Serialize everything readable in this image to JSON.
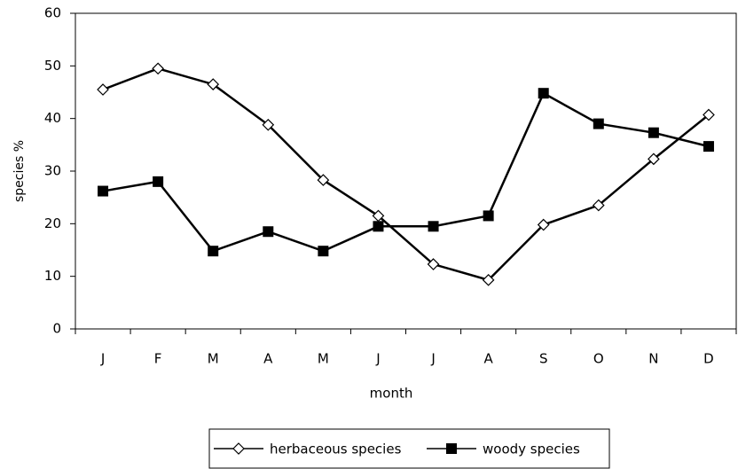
{
  "chart_data": {
    "type": "line",
    "x_label": "month",
    "y_label": "species  %",
    "categories": [
      "J",
      "F",
      "M",
      "A",
      "M",
      "J",
      "J",
      "A",
      "S",
      "O",
      "N",
      "D"
    ],
    "series": [
      {
        "name": "herbaceous species",
        "color": "#000000",
        "marker": "diamond",
        "values": [
          45.5,
          49.5,
          46.5,
          38.8,
          28.3,
          21.5,
          12.3,
          9.3,
          19.8,
          23.5,
          32.3,
          40.7
        ]
      },
      {
        "name": "woody species",
        "color": "#000000",
        "marker": "square",
        "values": [
          26.2,
          28,
          14.8,
          18.5,
          14.8,
          19.5,
          19.5,
          21.5,
          44.8,
          39,
          37.3,
          34.7
        ]
      }
    ],
    "ylim": [
      0,
      60
    ],
    "yticks": [
      0,
      10,
      20,
      30,
      40,
      50,
      60
    ],
    "grid": false,
    "legend": "bottom"
  }
}
